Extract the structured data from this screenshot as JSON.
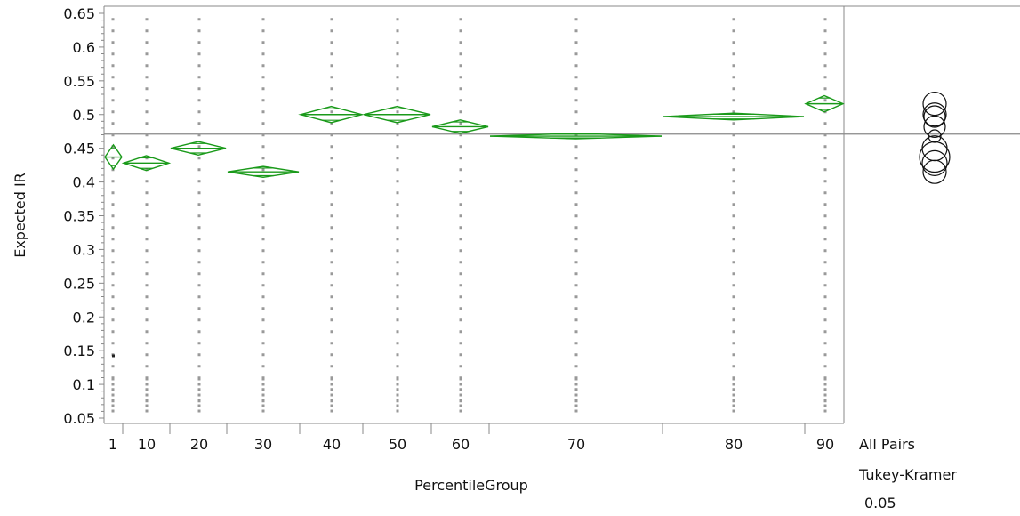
{
  "chart_data": {
    "type": "oneway-means-diamonds",
    "ylabel": "Expected IR",
    "xlabel": "PercentileGroup",
    "ylim": [
      0.05,
      0.65
    ],
    "yticks": [
      "0.05",
      "0.1",
      "0.15",
      "0.2",
      "0.25",
      "0.3",
      "0.35",
      "0.4",
      "0.45",
      "0.5",
      "0.55",
      "0.6",
      "0.65"
    ],
    "grand_mean": 0.471,
    "groups": [
      {
        "label": "1",
        "mean": 0.437,
        "ci_half": 0.018
      },
      {
        "label": "10",
        "mean": 0.428,
        "ci_half": 0.011
      },
      {
        "label": "20",
        "mean": 0.45,
        "ci_half": 0.01
      },
      {
        "label": "30",
        "mean": 0.415,
        "ci_half": 0.008
      },
      {
        "label": "40",
        "mean": 0.5,
        "ci_half": 0.012
      },
      {
        "label": "50",
        "mean": 0.5,
        "ci_half": 0.012
      },
      {
        "label": "60",
        "mean": 0.482,
        "ci_half": 0.01
      },
      {
        "label": "70",
        "mean": 0.468,
        "ci_half": 0.004
      },
      {
        "label": "80",
        "mean": 0.497,
        "ci_half": 0.005
      },
      {
        "label": "90",
        "mean": 0.516,
        "ci_half": 0.012
      }
    ],
    "comparison_circles": [
      0.516,
      0.5,
      0.497,
      0.482,
      0.468,
      0.45,
      0.437,
      0.428,
      0.415
    ],
    "comparison_labels": [
      "All Pairs",
      "Tukey-Kramer",
      "0.05"
    ],
    "colors": {
      "diamond": "#1a9a1a",
      "points": "#999999",
      "axis": "#888888",
      "grand_mean": "#888888",
      "circle": "#111111"
    }
  }
}
